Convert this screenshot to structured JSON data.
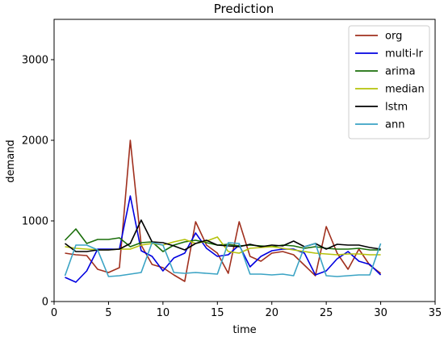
{
  "chart_data": {
    "type": "line",
    "title": "Prediction",
    "xlabel": "time",
    "ylabel": "demand",
    "xlim": [
      0,
      35
    ],
    "ylim": [
      0,
      3500
    ],
    "xticks": [
      0,
      5,
      10,
      15,
      20,
      25,
      30,
      35
    ],
    "yticks": [
      0,
      1000,
      2000,
      3000
    ],
    "grid": false,
    "legend_position": "top-right",
    "x": [
      1,
      2,
      3,
      4,
      5,
      6,
      7,
      8,
      9,
      10,
      11,
      12,
      13,
      14,
      15,
      16,
      17,
      18,
      19,
      20,
      21,
      22,
      23,
      24,
      25,
      26,
      27,
      28,
      29,
      30
    ],
    "series": [
      {
        "name": "org",
        "color": "#a0301e",
        "values": [
          600,
          580,
          570,
          400,
          360,
          420,
          2000,
          700,
          460,
          420,
          330,
          250,
          990,
          700,
          600,
          350,
          990,
          560,
          500,
          600,
          620,
          580,
          450,
          320,
          930,
          600,
          400,
          650,
          450,
          350
        ]
      },
      {
        "name": "multi-lr",
        "color": "#0000e0",
        "values": [
          300,
          240,
          380,
          650,
          650,
          650,
          1310,
          630,
          560,
          380,
          540,
          600,
          850,
          660,
          560,
          580,
          700,
          430,
          560,
          630,
          650,
          650,
          600,
          330,
          380,
          530,
          620,
          500,
          460,
          330
        ]
      },
      {
        "name": "arima",
        "color": "#1a6e0a",
        "values": [
          760,
          900,
          720,
          770,
          770,
          790,
          680,
          730,
          740,
          620,
          700,
          740,
          760,
          730,
          700,
          710,
          690,
          700,
          690,
          680,
          700,
          690,
          660,
          680,
          660,
          650,
          650,
          660,
          640,
          640
        ]
      },
      {
        "name": "median",
        "color": "#b5c20a",
        "values": [
          680,
          660,
          650,
          640,
          640,
          650,
          650,
          700,
          720,
          700,
          740,
          770,
          720,
          750,
          800,
          620,
          600,
          660,
          670,
          680,
          660,
          640,
          620,
          600,
          590,
          580,
          590,
          590,
          580,
          580
        ]
      },
      {
        "name": "lstm",
        "color": "#000000",
        "values": [
          720,
          620,
          620,
          640,
          640,
          650,
          720,
          1010,
          740,
          730,
          690,
          640,
          720,
          760,
          700,
          690,
          680,
          710,
          680,
          700,
          690,
          750,
          680,
          720,
          650,
          710,
          700,
          700,
          670,
          650
        ]
      },
      {
        "name": "ann",
        "color": "#3aa3c4",
        "values": [
          320,
          700,
          700,
          640,
          310,
          320,
          340,
          360,
          730,
          700,
          360,
          350,
          360,
          350,
          340,
          730,
          720,
          340,
          340,
          330,
          340,
          320,
          680,
          720,
          320,
          310,
          320,
          330,
          330,
          720
        ]
      }
    ]
  }
}
